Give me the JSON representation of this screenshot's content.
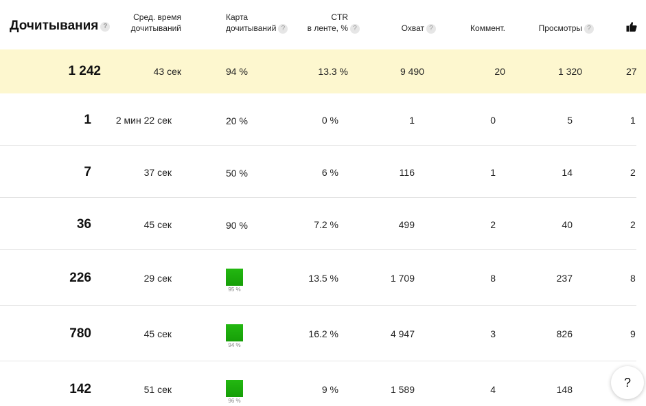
{
  "header": {
    "title": "Дочитывания",
    "avg_time": [
      "Сред. время",
      "дочитываний"
    ],
    "read_map": [
      "Карта",
      "дочитываний"
    ],
    "ctr": [
      "CTR",
      "в ленте, %"
    ],
    "reach": "Охват",
    "comments": "Коммент.",
    "views": "Просмотры",
    "help_glyph": "?",
    "likes_icon": "thumbs-up-icon"
  },
  "total": {
    "reads": "1 242",
    "avg_time": "43 сек",
    "read_map": "94 %",
    "ctr": "13.3 %",
    "reach": "9 490",
    "comments": "20",
    "views": "1 320",
    "likes": "27"
  },
  "rows": [
    {
      "reads": "1",
      "avg_time": "2 мин 22 сек",
      "read_map": "20 %",
      "ctr": "0 %",
      "reach": "1",
      "comments": "0",
      "views": "5",
      "likes": "1"
    },
    {
      "reads": "7",
      "avg_time": "37 сек",
      "read_map": "50 %",
      "ctr": "6 %",
      "reach": "116",
      "comments": "1",
      "views": "14",
      "likes": "2"
    },
    {
      "reads": "36",
      "avg_time": "45 сек",
      "read_map": "90 %",
      "ctr": "7.2 %",
      "reach": "499",
      "comments": "2",
      "views": "40",
      "likes": "2"
    },
    {
      "reads": "226",
      "avg_time": "29 сек",
      "read_map": "95 %",
      "ctr": "13.5 %",
      "reach": "1 709",
      "comments": "8",
      "views": "237",
      "likes": "8"
    },
    {
      "reads": "780",
      "avg_time": "45 сек",
      "read_map": "94 %",
      "ctr": "16.2 %",
      "reach": "4 947",
      "comments": "3",
      "views": "826",
      "likes": "9"
    },
    {
      "reads": "142",
      "avg_time": "51 сек",
      "read_map": "96 %",
      "ctr": "9 %",
      "reach": "1 589",
      "comments": "4",
      "views": "148",
      "likes": ""
    }
  ],
  "colors": {
    "highlight": "#fdf7cf",
    "bar": "#1fad0d"
  },
  "help_button": "?"
}
